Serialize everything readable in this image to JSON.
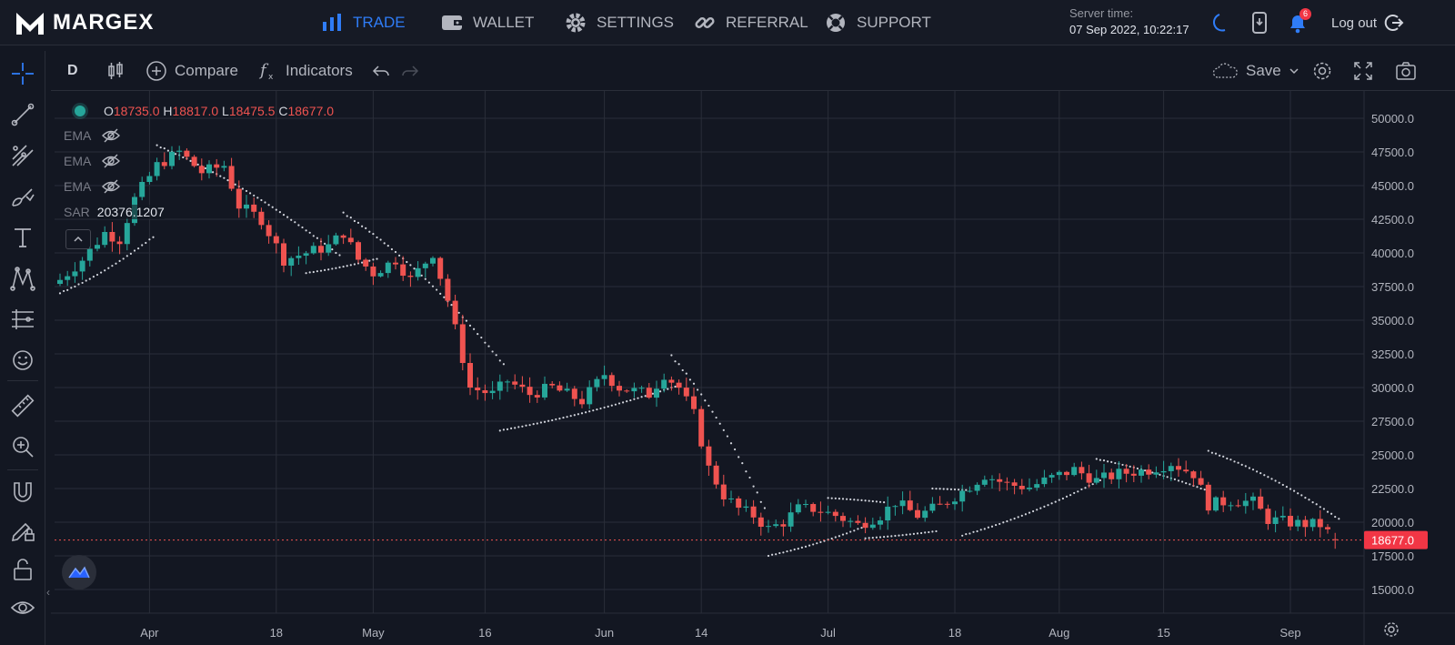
{
  "brand": {
    "name": "MARGEX"
  },
  "nav": [
    {
      "label": "TRADE",
      "icon": "bar-chart-icon",
      "active": true
    },
    {
      "label": "WALLET",
      "icon": "wallet-icon",
      "active": false
    },
    {
      "label": "SETTINGS",
      "icon": "gear-icon",
      "active": false
    },
    {
      "label": "REFERRAL",
      "icon": "link-icon",
      "active": false
    },
    {
      "label": "SUPPORT",
      "icon": "lifebuoy-icon",
      "active": false
    }
  ],
  "server": {
    "label": "Server time:",
    "value": "07 Sep 2022, 10:22:17"
  },
  "notifications": {
    "count": "6"
  },
  "logout": {
    "label": "Log out"
  },
  "toolbar": {
    "interval": "D",
    "compare": "Compare",
    "indicators": "Indicators",
    "save": "Save"
  },
  "legend": {
    "open_label": "O",
    "open": "18735.0",
    "high_label": "H",
    "high": "18817.0",
    "low_label": "L",
    "low": "18475.5",
    "close_label": "C",
    "close": "18677.0"
  },
  "indicators": [
    {
      "name": "EMA",
      "value": ""
    },
    {
      "name": "EMA",
      "value": ""
    },
    {
      "name": "EMA",
      "value": ""
    },
    {
      "name": "SAR",
      "value": "20376.1207"
    }
  ],
  "colors": {
    "up": "#26a69a",
    "down": "#ef5350",
    "accent": "#2f7cf6",
    "sar": "#d1d4dc"
  },
  "chart_data": {
    "type": "candlestick",
    "title": "",
    "ylim": [
      14500,
      51000
    ],
    "y_ticks": [
      "50000.0",
      "47500.0",
      "45000.0",
      "42500.0",
      "40000.0",
      "37500.0",
      "35000.0",
      "32500.0",
      "30000.0",
      "27500.0",
      "25000.0",
      "22500.0",
      "20000.0",
      "17500.0",
      "15000.0"
    ],
    "x_ticks": [
      {
        "label": "Apr",
        "day": 12
      },
      {
        "label": "18",
        "day": 29
      },
      {
        "label": "May",
        "day": 42
      },
      {
        "label": "16",
        "day": 57
      },
      {
        "label": "Jun",
        "day": 73
      },
      {
        "label": "14",
        "day": 86
      },
      {
        "label": "Jul",
        "day": 103
      },
      {
        "label": "18",
        "day": 120
      },
      {
        "label": "Aug",
        "day": 134
      },
      {
        "label": "15",
        "day": 148
      },
      {
        "label": "Sep",
        "day": 165
      }
    ],
    "last_price": "18677.0",
    "close_path": [
      [
        0,
        38000
      ],
      [
        3,
        39500
      ],
      [
        6,
        41500
      ],
      [
        8,
        41000
      ],
      [
        10,
        44000
      ],
      [
        13,
        46500
      ],
      [
        16,
        47500
      ],
      [
        19,
        46000
      ],
      [
        22,
        46500
      ],
      [
        24,
        43500
      ],
      [
        27,
        42500
      ],
      [
        30,
        39500
      ],
      [
        33,
        40000
      ],
      [
        36,
        40500
      ],
      [
        38,
        41500
      ],
      [
        40,
        39500
      ],
      [
        42,
        38500
      ],
      [
        45,
        39500
      ],
      [
        47,
        38000
      ],
      [
        50,
        40000
      ],
      [
        52,
        36500
      ],
      [
        55,
        30000
      ],
      [
        58,
        29500
      ],
      [
        60,
        30500
      ],
      [
        63,
        29500
      ],
      [
        66,
        30000
      ],
      [
        70,
        29000
      ],
      [
        73,
        31000
      ],
      [
        75,
        30000
      ],
      [
        79,
        29500
      ],
      [
        81,
        31000
      ],
      [
        83,
        30000
      ],
      [
        85,
        28000
      ],
      [
        87,
        24000
      ],
      [
        89,
        22000
      ],
      [
        91,
        21000
      ],
      [
        93,
        20500
      ],
      [
        95,
        19500
      ],
      [
        97,
        20000
      ],
      [
        99,
        21000
      ],
      [
        101,
        21000
      ],
      [
        104,
        20500
      ],
      [
        107,
        19800
      ],
      [
        110,
        20500
      ],
      [
        112,
        21500
      ],
      [
        115,
        20500
      ],
      [
        118,
        21200
      ],
      [
        121,
        22300
      ],
      [
        124,
        23500
      ],
      [
        127,
        22800
      ],
      [
        130,
        22600
      ],
      [
        133,
        23300
      ],
      [
        136,
        23900
      ],
      [
        139,
        23100
      ],
      [
        142,
        23600
      ],
      [
        146,
        23900
      ],
      [
        149,
        24400
      ],
      [
        152,
        23600
      ],
      [
        154,
        21300
      ],
      [
        157,
        21600
      ],
      [
        160,
        21500
      ],
      [
        162,
        20200
      ],
      [
        166,
        19900
      ],
      [
        169,
        19800
      ],
      [
        171,
        18677
      ]
    ],
    "sar": [
      {
        "start": 0,
        "end": 12,
        "from": 37000,
        "to": 41000
      },
      {
        "start": 13,
        "end": 37,
        "from": 48000,
        "to": 40000
      },
      {
        "start": 33,
        "end": 42,
        "from": 38500,
        "to": 39500
      },
      {
        "start": 38,
        "end": 59,
        "from": 43000,
        "to": 32000
      },
      {
        "start": 59,
        "end": 82,
        "from": 26800,
        "to": 30000
      },
      {
        "start": 82,
        "end": 94,
        "from": 32400,
        "to": 21500
      },
      {
        "start": 95,
        "end": 107,
        "from": 17500,
        "to": 19500
      },
      {
        "start": 103,
        "end": 110,
        "from": 21800,
        "to": 21500
      },
      {
        "start": 108,
        "end": 117,
        "from": 18800,
        "to": 19300
      },
      {
        "start": 117,
        "end": 121,
        "from": 22500,
        "to": 22400
      },
      {
        "start": 121,
        "end": 139,
        "from": 19000,
        "to": 23000
      },
      {
        "start": 139,
        "end": 153,
        "from": 24700,
        "to": 22500
      },
      {
        "start": 154,
        "end": 171,
        "from": 25300,
        "to": 20400
      }
    ],
    "days": 172
  }
}
